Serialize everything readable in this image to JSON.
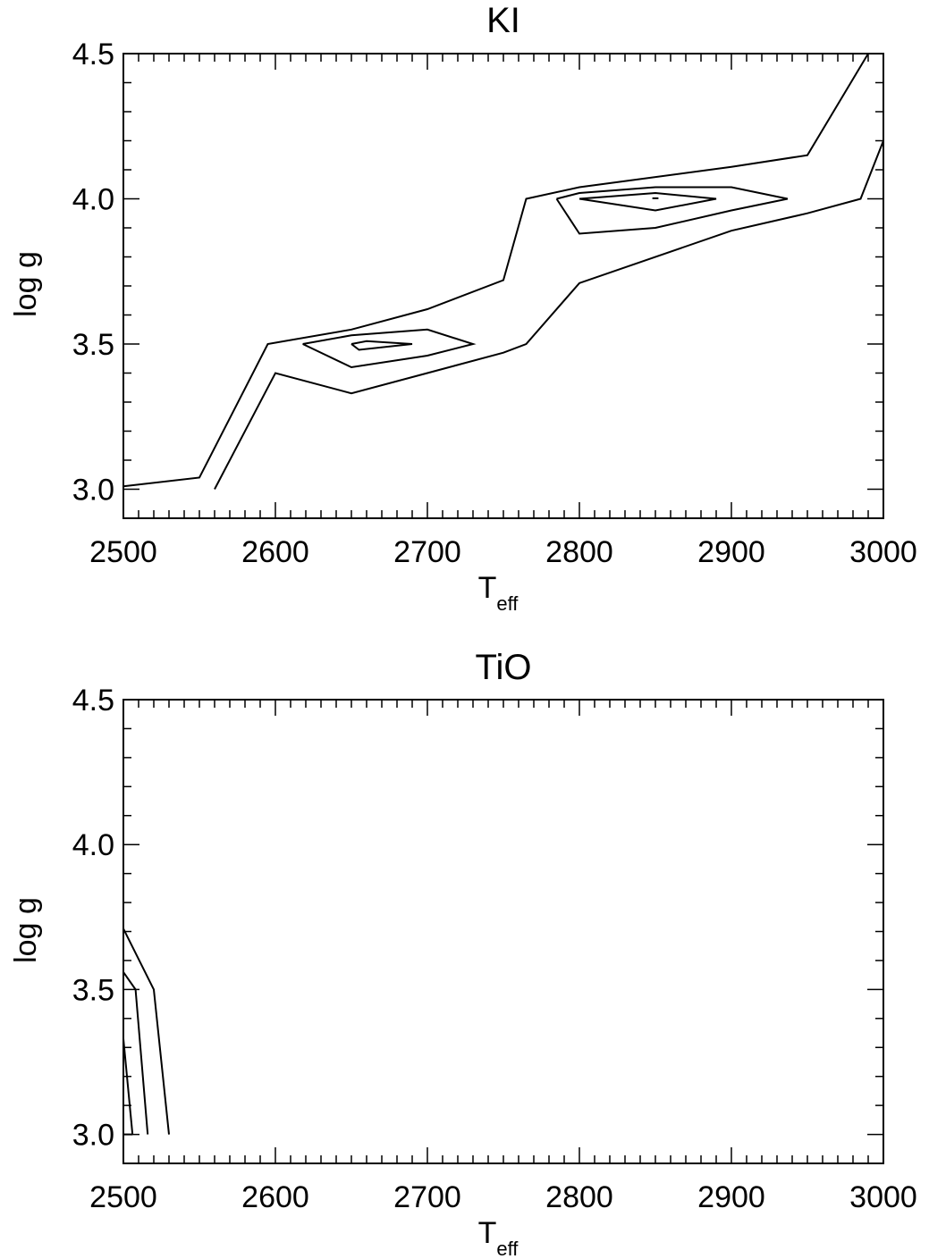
{
  "chart_data": [
    {
      "type": "line",
      "title": "KI",
      "xlabel_main": "T",
      "xlabel_sub": "eff",
      "ylabel": "log g",
      "xlim": [
        2500,
        3000
      ],
      "ylim": [
        2.9,
        4.5
      ],
      "xticks": [
        2500,
        2600,
        2700,
        2800,
        2900,
        3000
      ],
      "xtick_labels": [
        "2500",
        "2600",
        "2700",
        "2800",
        "2900",
        "3000"
      ],
      "yticks": [
        3.0,
        3.5,
        4.0,
        4.5
      ],
      "ytick_labels": [
        "3.0",
        "3.5",
        "4.0",
        "4.5"
      ],
      "grid": false,
      "contours": [
        [
          [
            2500,
            3.01
          ],
          [
            2550,
            3.04
          ],
          [
            2595,
            3.5
          ],
          [
            2650,
            3.55
          ],
          [
            2700,
            3.62
          ],
          [
            2750,
            3.72
          ],
          [
            2765,
            4.0
          ],
          [
            2800,
            4.04
          ],
          [
            2900,
            4.11
          ],
          [
            2950,
            4.15
          ],
          [
            2990,
            4.5
          ]
        ],
        [
          [
            2560,
            3.0
          ],
          [
            2600,
            3.4
          ],
          [
            2650,
            3.33
          ],
          [
            2700,
            3.4
          ],
          [
            2750,
            3.47
          ],
          [
            2765,
            3.5
          ],
          [
            2800,
            3.71
          ],
          [
            2900,
            3.89
          ],
          [
            2950,
            3.95
          ],
          [
            2985,
            4.0
          ],
          [
            3000,
            4.2
          ]
        ],
        [
          [
            2618,
            3.5
          ],
          [
            2650,
            3.53
          ],
          [
            2700,
            3.55
          ],
          [
            2730,
            3.5
          ],
          [
            2700,
            3.46
          ],
          [
            2650,
            3.42
          ],
          [
            2618,
            3.5
          ]
        ],
        [
          [
            2650,
            3.5
          ],
          [
            2660,
            3.51
          ],
          [
            2690,
            3.5
          ],
          [
            2655,
            3.48
          ],
          [
            2650,
            3.5
          ]
        ],
        [
          [
            2785,
            4.0
          ],
          [
            2800,
            4.02
          ],
          [
            2850,
            4.04
          ],
          [
            2900,
            4.04
          ],
          [
            2937,
            4.0
          ],
          [
            2900,
            3.96
          ],
          [
            2850,
            3.9
          ],
          [
            2800,
            3.88
          ],
          [
            2785,
            4.0
          ]
        ],
        [
          [
            2800,
            4.0
          ],
          [
            2850,
            4.02
          ],
          [
            2890,
            4.0
          ],
          [
            2850,
            3.96
          ],
          [
            2800,
            4.0
          ]
        ],
        [
          [
            2848,
            4.002
          ],
          [
            2852,
            4.002
          ]
        ]
      ]
    },
    {
      "type": "line",
      "title": "TiO",
      "xlabel_main": "T",
      "xlabel_sub": "eff",
      "ylabel": "log g",
      "xlim": [
        2500,
        3000
      ],
      "ylim": [
        2.9,
        4.5
      ],
      "xticks": [
        2500,
        2600,
        2700,
        2800,
        2900,
        3000
      ],
      "xtick_labels": [
        "2500",
        "2600",
        "2700",
        "2800",
        "2900",
        "3000"
      ],
      "yticks": [
        3.0,
        3.5,
        4.0,
        4.5
      ],
      "ytick_labels": [
        "3.0",
        "3.5",
        "4.0",
        "4.5"
      ],
      "grid": false,
      "contours": [
        [
          [
            2500,
            3.71
          ],
          [
            2520,
            3.5
          ],
          [
            2530,
            3.0
          ]
        ],
        [
          [
            2500,
            3.56
          ],
          [
            2508,
            3.5
          ],
          [
            2516,
            3.0
          ]
        ],
        [
          [
            2500,
            3.33
          ],
          [
            2506,
            3.0
          ]
        ],
        [
          [
            2500,
            3.0
          ],
          [
            2506,
            3.0
          ]
        ]
      ]
    }
  ]
}
